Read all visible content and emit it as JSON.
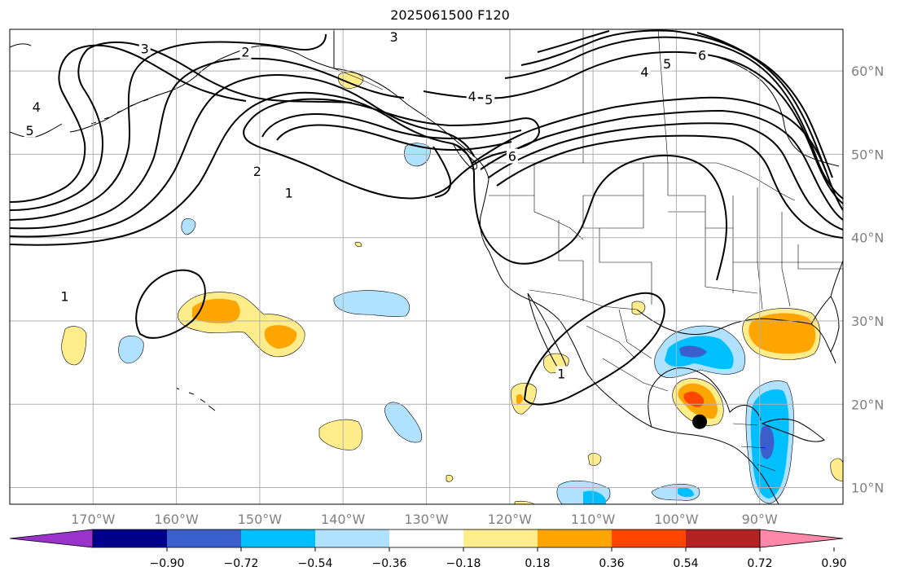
{
  "title": "2025061500 F120",
  "map": {
    "lon_range": [
      -180,
      -80
    ],
    "lat_range": [
      8,
      65
    ],
    "lon_ticks": [
      {
        "value": -170,
        "label": "170°W"
      },
      {
        "value": -160,
        "label": "160°W"
      },
      {
        "value": -150,
        "label": "150°W"
      },
      {
        "value": -140,
        "label": "140°W"
      },
      {
        "value": -130,
        "label": "130°W"
      },
      {
        "value": -120,
        "label": "120°W"
      },
      {
        "value": -110,
        "label": "110°W"
      },
      {
        "value": -100,
        "label": "100°W"
      },
      {
        "value": -90,
        "label": "90°W"
      }
    ],
    "lat_ticks": [
      {
        "value": 10,
        "label": "10°N"
      },
      {
        "value": 20,
        "label": "20°N"
      },
      {
        "value": 30,
        "label": "30°N"
      },
      {
        "value": 40,
        "label": "40°N"
      },
      {
        "value": 50,
        "label": "50°N"
      },
      {
        "value": 60,
        "label": "60°N"
      }
    ],
    "grid": true,
    "contour_labels": [
      {
        "text": "3",
        "lon": -163.8,
        "lat": 62.6
      },
      {
        "text": "2",
        "lon": -151.7,
        "lat": 62.2
      },
      {
        "text": "3",
        "lon": -133.9,
        "lat": 64.0
      },
      {
        "text": "4",
        "lon": -176.8,
        "lat": 55.6
      },
      {
        "text": "5",
        "lon": -177.6,
        "lat": 52.8
      },
      {
        "text": "2",
        "lon": -150.3,
        "lat": 47.9
      },
      {
        "text": "1",
        "lon": -146.5,
        "lat": 45.3
      },
      {
        "text": "5",
        "lon": -122.5,
        "lat": 56.5
      },
      {
        "text": "4",
        "lon": -124.5,
        "lat": 56.9
      },
      {
        "text": "6",
        "lon": -119.7,
        "lat": 49.7
      },
      {
        "text": "6",
        "lon": -96.9,
        "lat": 61.8
      },
      {
        "text": "5",
        "lon": -101.1,
        "lat": 60.8
      },
      {
        "text": "4",
        "lon": -103.8,
        "lat": 59.8
      },
      {
        "text": "1",
        "lon": -173.4,
        "lat": 32.9
      },
      {
        "text": "1",
        "lon": -113.8,
        "lat": 23.6
      }
    ],
    "marker": {
      "lon": -97.2,
      "lat": 17.9,
      "color": "#000000"
    }
  },
  "colorbar": {
    "colors": [
      "#9933cc",
      "#00008b",
      "#3a5fcd",
      "#00bfff",
      "#b0e2ff",
      "#ffffff",
      "#ffec8b",
      "#ffa500",
      "#ff4500",
      "#b22222",
      "#ff88aa"
    ],
    "ticks": [
      "−0.90",
      "−0.72",
      "−0.54",
      "−0.36",
      "−0.18",
      "0.18",
      "0.36",
      "0.54",
      "0.72",
      "0.90"
    ]
  }
}
